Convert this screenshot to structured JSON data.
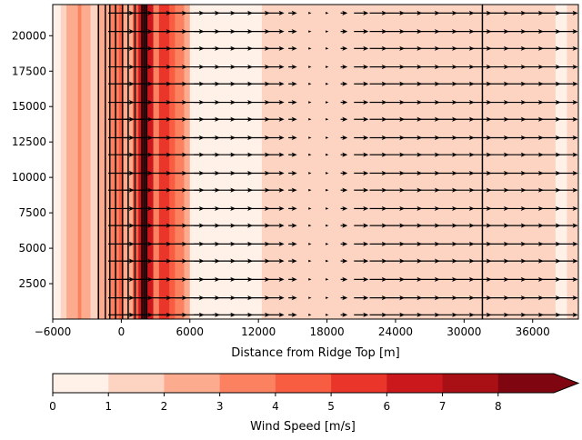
{
  "chart_data": {
    "type": "heatmap",
    "title": "",
    "xlabel": "Distance from Ridge Top [m]",
    "ylabel": "",
    "xlim": [
      -6000,
      40000
    ],
    "ylim": [
      0,
      22200
    ],
    "xticks": [
      -6000,
      0,
      6000,
      12000,
      18000,
      24000,
      30000,
      36000
    ],
    "xtick_labels": [
      "−6000",
      "0",
      "6000",
      "12000",
      "18000",
      "24000",
      "30000",
      "36000"
    ],
    "yticks": [
      2500,
      5000,
      7500,
      10000,
      12500,
      15000,
      17500,
      20000
    ],
    "ytick_labels": [
      "2500",
      "5000",
      "7500",
      "10000",
      "12500",
      "15000",
      "17500",
      "20000"
    ],
    "wind_speed_bands": [
      {
        "x0": -6000,
        "x1": -5300,
        "level": 0
      },
      {
        "x0": -5300,
        "x1": -4800,
        "level": 1
      },
      {
        "x0": -4800,
        "x1": -3800,
        "level": 2
      },
      {
        "x0": -3800,
        "x1": -3500,
        "level": 3
      },
      {
        "x0": -3500,
        "x1": -2700,
        "level": 2
      },
      {
        "x0": -2700,
        "x1": -2100,
        "level": 1
      },
      {
        "x0": -2100,
        "x1": -900,
        "level": 2
      },
      {
        "x0": -900,
        "x1": -200,
        "level": 3
      },
      {
        "x0": -200,
        "x1": 200,
        "level": 4
      },
      {
        "x0": 200,
        "x1": 1000,
        "level": 2
      },
      {
        "x0": 1000,
        "x1": 1500,
        "level": 4
      },
      {
        "x0": 1500,
        "x1": 1800,
        "level": 6
      },
      {
        "x0": 1800,
        "x1": 2300,
        "level": 8
      },
      {
        "x0": 2300,
        "x1": 2800,
        "level": 6
      },
      {
        "x0": 2800,
        "x1": 3300,
        "level": 3
      },
      {
        "x0": 3300,
        "x1": 4200,
        "level": 5
      },
      {
        "x0": 4200,
        "x1": 4700,
        "level": 4
      },
      {
        "x0": 4700,
        "x1": 5500,
        "level": 3
      },
      {
        "x0": 5500,
        "x1": 6000,
        "level": 2
      },
      {
        "x0": 6000,
        "x1": 12300,
        "level": 0
      },
      {
        "x0": 12300,
        "x1": 38000,
        "level": 1
      },
      {
        "x0": 38000,
        "x1": 39000,
        "level": 0
      },
      {
        "x0": 39000,
        "x1": 40000,
        "level": 1
      }
    ],
    "contour_lines_x": [
      -2000,
      -1400,
      -1000,
      -500,
      100,
      600,
      1200,
      1800,
      2000,
      2200,
      31600
    ],
    "wind_vectors": {
      "x": [
        0,
        1500,
        3000,
        4500,
        6000,
        7500,
        9000,
        10500,
        12000,
        13500,
        15000,
        16500,
        18000,
        19500,
        21000,
        22500,
        24000,
        25500,
        27000,
        28500,
        30000,
        31500,
        33000,
        34500,
        36000,
        37500,
        39000
      ],
      "y": [
        300,
        1500,
        2800,
        4100,
        5300,
        6600,
        7800,
        9100,
        10300,
        11600,
        12800,
        14100,
        15300,
        16600,
        17800,
        19100,
        20300,
        21600
      ],
      "u": [
        4.5,
        5.0,
        5.5,
        5.0,
        5.0,
        4.5,
        4.0,
        4.0,
        4.0,
        3.0,
        1.5,
        0.4,
        0.4,
        1.2,
        2.5,
        3.0,
        3.2,
        3.3,
        3.5,
        3.6,
        3.6,
        3.6,
        3.7,
        3.7,
        3.8,
        3.8,
        3.8
      ]
    },
    "colorbar": {
      "label": "Wind Speed [m/s]",
      "levels": [
        0,
        1,
        2,
        3,
        4,
        5,
        6,
        7,
        8,
        9
      ],
      "tick_labels": [
        "0",
        "1",
        "2",
        "3",
        "4",
        "5",
        "6",
        "7",
        "8"
      ],
      "colors": [
        "#fff0e8",
        "#fdd4c2",
        "#fcab8f",
        "#fc8161",
        "#f85d42",
        "#ea362a",
        "#cb181d",
        "#a81015",
        "#7f0610"
      ],
      "extend": "max"
    }
  }
}
